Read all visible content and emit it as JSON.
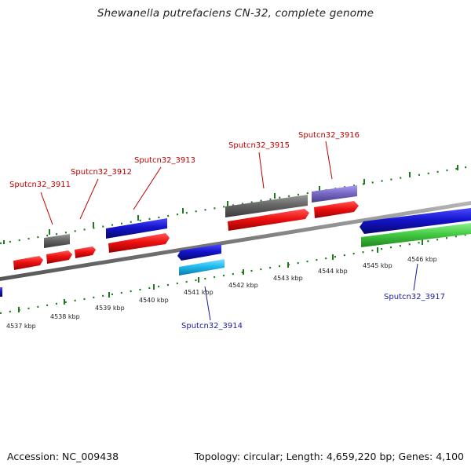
{
  "title": "Shewanella putrefaciens CN-32, complete genome",
  "footer": {
    "accession": "Accession: NC_009438",
    "summary": "Topology: circular; Length: 4,659,220 bp; Genes: 4,100"
  },
  "colors": {
    "backbone": "#808080",
    "tick": "#1e7a1e",
    "forward_cds": "#ee1111",
    "reverse_cds": "#1414cc",
    "gray_feature": "#666666",
    "violet_feature": "#7a6ac8",
    "cyan_feature": "#22bbee",
    "green_feature": "#44cc44",
    "label_forward": "#c00000",
    "label_reverse": "#1a1aa0"
  },
  "kbp_labels": [
    "4537 kbp",
    "4538 kbp",
    "4539 kbp",
    "4540 kbp",
    "4541 kbp",
    "4542 kbp",
    "4543 kbp",
    "4544 kbp",
    "4545 kbp",
    "4546 kbp"
  ],
  "gene_labels": [
    {
      "text": "Sputcn32_3911",
      "strand": "forward"
    },
    {
      "text": "Sputcn32_3912",
      "strand": "forward"
    },
    {
      "text": "Sputcn32_3913",
      "strand": "forward"
    },
    {
      "text": "Sputcn32_3914",
      "strand": "reverse"
    },
    {
      "text": "Sputcn32_3915",
      "strand": "forward"
    },
    {
      "text": "Sputcn32_3916",
      "strand": "forward"
    },
    {
      "text": "Sputcn32_3917",
      "strand": "reverse"
    }
  ]
}
